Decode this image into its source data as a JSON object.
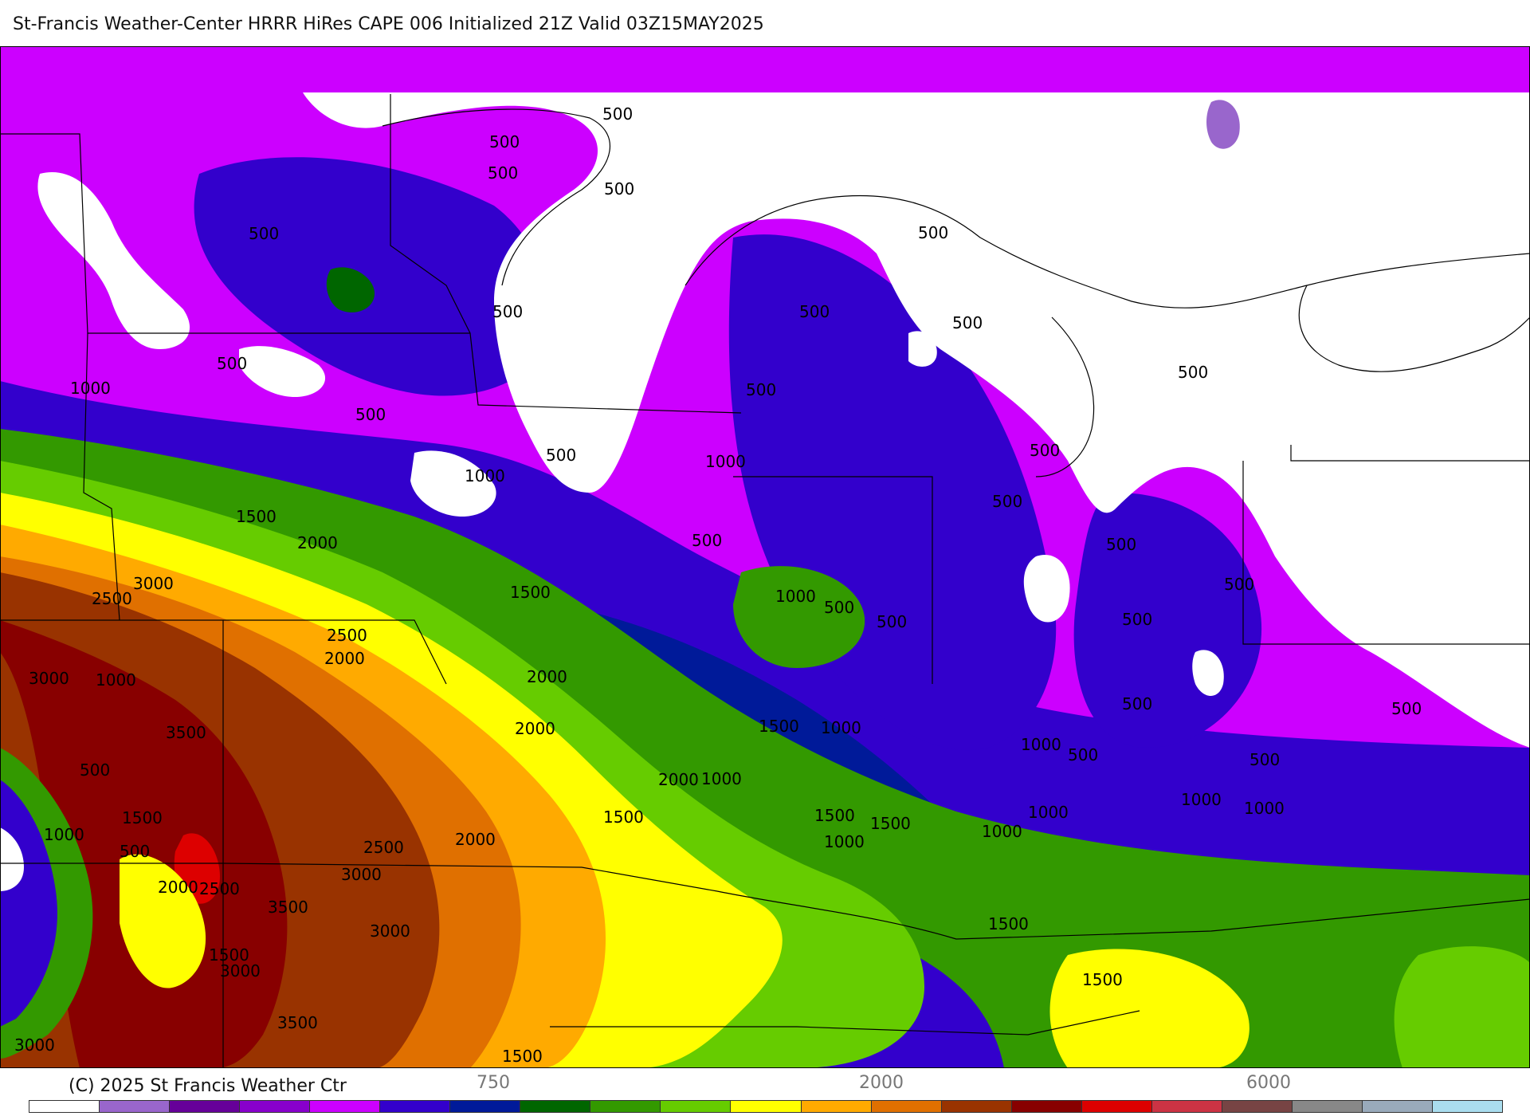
{
  "title": "St-Francis Weather-Center HRRR HiRes CAPE  006 Initialized  21Z Valid 03Z15MAY2025",
  "footer": {
    "copyright": "(C) 2025 St Francis Weather Ctr",
    "tick_labels": [
      "750",
      "2000",
      "6000"
    ]
  },
  "colorbar": {
    "colors": [
      "#ffffff",
      "#9966cc",
      "#660099",
      "#8800cc",
      "#cc00ff",
      "#3300cc",
      "#001a99",
      "#006600",
      "#339900",
      "#66cc00",
      "#ffff00",
      "#ffaa00",
      "#e07000",
      "#993300",
      "#880000",
      "#dd0000",
      "#cc3344",
      "#774444",
      "#888888",
      "#99aabb",
      "#aaddee"
    ]
  },
  "map": {
    "contour_labels": [
      {
        "text": "500"
      },
      {
        "text": "500"
      },
      {
        "text": "500"
      },
      {
        "text": "500"
      },
      {
        "text": "500"
      },
      {
        "text": "500"
      },
      {
        "text": "500"
      },
      {
        "text": "500"
      },
      {
        "text": "500"
      },
      {
        "text": "500"
      },
      {
        "text": "500"
      },
      {
        "text": "500"
      },
      {
        "text": "500"
      },
      {
        "text": "500"
      },
      {
        "text": "500"
      },
      {
        "text": "500"
      },
      {
        "text": "500"
      },
      {
        "text": "500"
      },
      {
        "text": "500"
      },
      {
        "text": "500"
      },
      {
        "text": "500"
      },
      {
        "text": "500"
      },
      {
        "text": "500"
      },
      {
        "text": "500"
      },
      {
        "text": "500"
      },
      {
        "text": "500"
      },
      {
        "text": "500"
      },
      {
        "text": "500"
      },
      {
        "text": "1000"
      },
      {
        "text": "1000"
      },
      {
        "text": "1000"
      },
      {
        "text": "1000"
      },
      {
        "text": "1000"
      },
      {
        "text": "1000"
      },
      {
        "text": "1000"
      },
      {
        "text": "1000"
      },
      {
        "text": "1000"
      },
      {
        "text": "1000"
      },
      {
        "text": "1000"
      },
      {
        "text": "1000"
      },
      {
        "text": "1000"
      },
      {
        "text": "1000"
      },
      {
        "text": "1500"
      },
      {
        "text": "1500"
      },
      {
        "text": "1500"
      },
      {
        "text": "1500"
      },
      {
        "text": "1500"
      },
      {
        "text": "1500"
      },
      {
        "text": "1500"
      },
      {
        "text": "1500"
      },
      {
        "text": "1500"
      },
      {
        "text": "1500"
      },
      {
        "text": "1500"
      },
      {
        "text": "2000"
      },
      {
        "text": "2000"
      },
      {
        "text": "2000"
      },
      {
        "text": "2000"
      },
      {
        "text": "2000"
      },
      {
        "text": "2000"
      },
      {
        "text": "2000"
      },
      {
        "text": "2500"
      },
      {
        "text": "2500"
      },
      {
        "text": "2500"
      },
      {
        "text": "2500"
      },
      {
        "text": "3000"
      },
      {
        "text": "3000"
      },
      {
        "text": "3000"
      },
      {
        "text": "3000"
      },
      {
        "text": "3000"
      },
      {
        "text": "3000"
      },
      {
        "text": "3500"
      },
      {
        "text": "3500"
      },
      {
        "text": "3500"
      }
    ]
  }
}
